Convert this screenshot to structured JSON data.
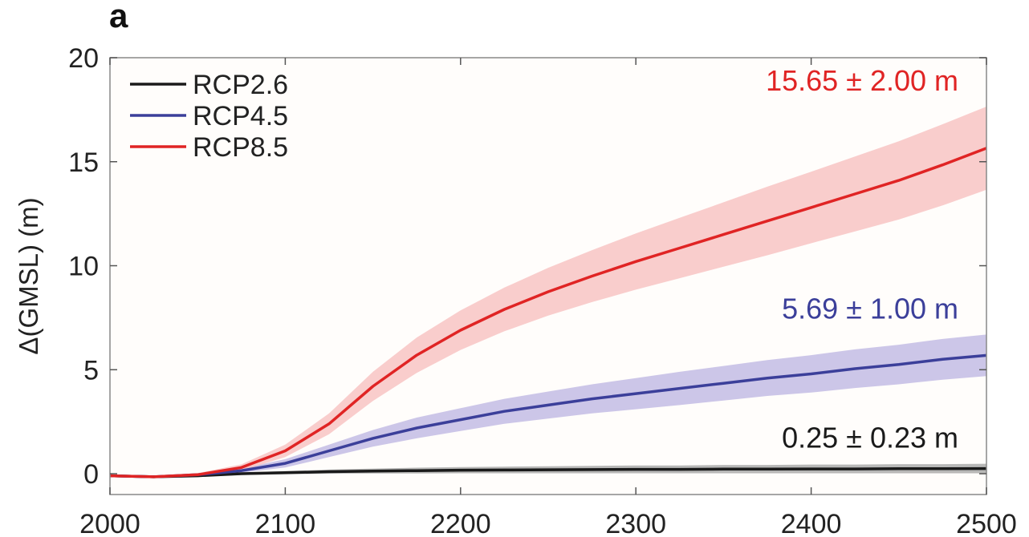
{
  "panel_label": "a",
  "chart_data": {
    "type": "line",
    "title": "",
    "xlabel": "",
    "ylabel": "Δ(GMSL) (m)",
    "xlim": [
      2000,
      2500
    ],
    "ylim": [
      -1,
      20
    ],
    "xticks": [
      2000,
      2100,
      2200,
      2300,
      2400,
      2500
    ],
    "yticks": [
      0,
      5,
      10,
      15,
      20
    ],
    "grid": false,
    "legend": "top-left",
    "x": [
      2000,
      2025,
      2050,
      2075,
      2100,
      2125,
      2150,
      2175,
      2200,
      2225,
      2250,
      2275,
      2300,
      2325,
      2350,
      2375,
      2400,
      2425,
      2450,
      2475,
      2500
    ],
    "series": [
      {
        "name": "RCP2.6",
        "color": "#1a1a1a",
        "band_color": "#9a9a9a",
        "values": [
          -0.1,
          -0.15,
          -0.1,
          0.0,
          0.05,
          0.1,
          0.13,
          0.15,
          0.17,
          0.18,
          0.19,
          0.2,
          0.21,
          0.21,
          0.22,
          0.22,
          0.23,
          0.23,
          0.24,
          0.24,
          0.25
        ],
        "uncertainty": [
          0.05,
          0.05,
          0.05,
          0.06,
          0.08,
          0.1,
          0.12,
          0.14,
          0.15,
          0.16,
          0.17,
          0.18,
          0.19,
          0.19,
          0.2,
          0.2,
          0.21,
          0.21,
          0.22,
          0.22,
          0.23
        ]
      },
      {
        "name": "RCP4.5",
        "color": "#3b3f9a",
        "band_color": "#b7aee0",
        "values": [
          -0.1,
          -0.15,
          -0.05,
          0.15,
          0.5,
          1.1,
          1.7,
          2.2,
          2.6,
          3.0,
          3.3,
          3.6,
          3.85,
          4.1,
          4.35,
          4.6,
          4.8,
          5.05,
          5.25,
          5.5,
          5.69
        ],
        "uncertainty": [
          0.02,
          0.03,
          0.05,
          0.1,
          0.2,
          0.3,
          0.4,
          0.5,
          0.55,
          0.6,
          0.65,
          0.7,
          0.75,
          0.8,
          0.83,
          0.86,
          0.9,
          0.93,
          0.95,
          0.98,
          1.0
        ]
      },
      {
        "name": "RCP8.5",
        "color": "#e02424",
        "band_color": "#f6b8b8",
        "values": [
          -0.1,
          -0.15,
          -0.05,
          0.3,
          1.1,
          2.4,
          4.2,
          5.7,
          6.9,
          7.9,
          8.75,
          9.5,
          10.2,
          10.85,
          11.5,
          12.15,
          12.8,
          13.45,
          14.1,
          14.85,
          15.65
        ],
        "uncertainty": [
          0.03,
          0.05,
          0.08,
          0.15,
          0.3,
          0.5,
          0.7,
          0.85,
          0.95,
          1.05,
          1.15,
          1.25,
          1.35,
          1.45,
          1.55,
          1.65,
          1.72,
          1.8,
          1.88,
          1.95,
          2.0
        ]
      }
    ],
    "annotations": [
      {
        "text": "15.65 ± 2.00 m",
        "series": "RCP8.5",
        "color": "#e02424"
      },
      {
        "text": "5.69 ± 1.00 m",
        "series": "RCP4.5",
        "color": "#3b3f9a"
      },
      {
        "text": "0.25 ± 0.23 m",
        "series": "RCP2.6",
        "color": "#1a1a1a"
      }
    ]
  }
}
